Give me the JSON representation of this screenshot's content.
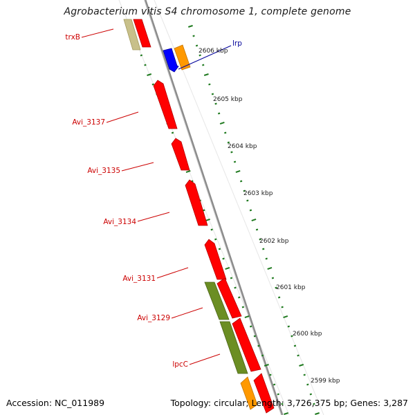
{
  "title": "Agrobacterium vitis S4 chromosome 1, complete genome",
  "footer": {
    "accession": "Accession: NC_011989",
    "summary": "Topology: circular; Length: 3,726,375 bp; Genes: 3,287"
  },
  "colors": {
    "backbone": "#8c8c8c",
    "tick": "#1f7a1f",
    "label_red": "#cc0000",
    "label_blue": "#000099",
    "gene_red": "#ff0000",
    "gene_olive": "#6b8e23",
    "gene_khaki": "#c8c08a",
    "gene_orange": "#ff9900",
    "gene_blue": "#0000ff"
  },
  "scale_labels": [
    "2606 kbp",
    "2605 kbp",
    "2604 kbp",
    "2603 kbp",
    "2602 kbp",
    "2601 kbp",
    "2600 kbp",
    "2599 kbp"
  ],
  "gene_labels": [
    {
      "name": "trxB",
      "color": "red"
    },
    {
      "name": "lrp",
      "color": "blue"
    },
    {
      "name": "Avi_3137",
      "color": "red"
    },
    {
      "name": "Avi_3135",
      "color": "red"
    },
    {
      "name": "Avi_3134",
      "color": "red"
    },
    {
      "name": "Avi_3131",
      "color": "red"
    },
    {
      "name": "Avi_3129",
      "color": "red"
    },
    {
      "name": "lpcC",
      "color": "red"
    }
  ]
}
